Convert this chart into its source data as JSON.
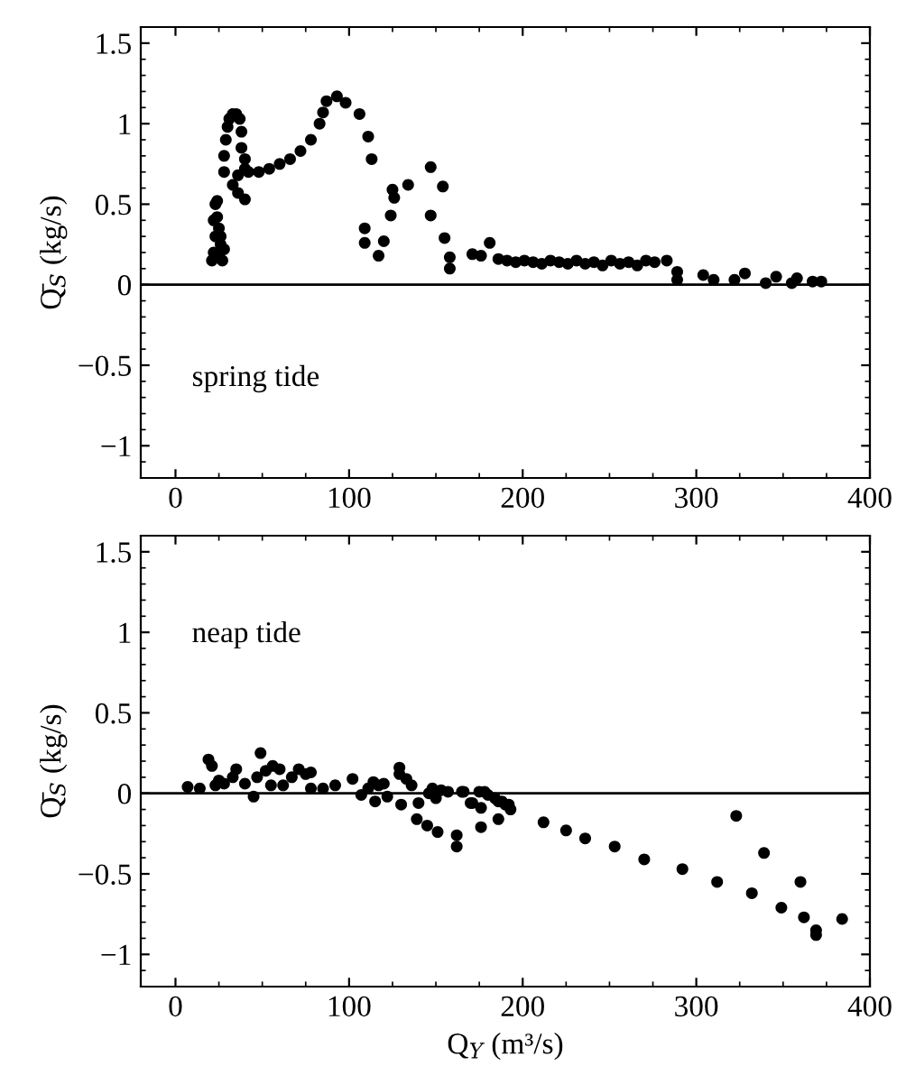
{
  "chart_data": [
    {
      "type": "scatter",
      "ylabel": "Q̄$_{S}$ (kg/s)",
      "annotations": [
        "spring tide"
      ],
      "xlim": [
        -20,
        400
      ],
      "xticks": [
        0,
        100,
        200,
        300,
        400
      ],
      "ylim": [
        -1.2,
        1.6
      ],
      "yticks": [
        -1,
        -0.5,
        0,
        0.5,
        1,
        1.5
      ],
      "ref_lines": [
        {
          "axis": "y",
          "value": 0,
          "color": "#000000"
        }
      ],
      "grid": false,
      "legend": false,
      "marker": "circle",
      "series": [
        {
          "color": "#000000",
          "x": [
            21,
            22,
            23,
            22,
            23,
            24,
            25,
            26,
            27,
            25,
            28,
            24,
            26,
            28,
            28,
            29,
            30,
            31,
            33,
            35,
            37,
            38,
            38,
            40,
            40,
            33,
            36,
            40,
            36,
            42,
            48,
            54,
            60,
            66,
            72,
            78,
            83,
            85,
            87,
            93,
            98,
            106,
            111,
            113,
            109,
            109,
            117,
            120,
            124,
            125,
            126,
            134,
            147,
            147,
            154,
            155,
            158,
            158,
            171,
            176,
            181,
            186,
            191,
            196,
            201,
            206,
            211,
            216,
            221,
            226,
            231,
            236,
            241,
            246,
            251,
            256,
            261,
            266,
            271,
            276,
            283,
            289,
            289,
            304,
            310,
            322,
            328,
            340,
            346,
            355,
            358,
            367,
            372
          ],
          "values": [
            0.15,
            0.2,
            0.3,
            0.4,
            0.5,
            0.52,
            0.35,
            0.25,
            0.15,
            0.18,
            0.22,
            0.42,
            0.3,
            0.7,
            0.8,
            0.9,
            0.98,
            1.03,
            1.06,
            1.06,
            1.03,
            0.95,
            0.85,
            0.78,
            0.72,
            0.62,
            0.57,
            0.53,
            0.68,
            0.7,
            0.7,
            0.72,
            0.75,
            0.78,
            0.83,
            0.9,
            1.0,
            1.07,
            1.14,
            1.17,
            1.13,
            1.06,
            0.92,
            0.78,
            0.35,
            0.26,
            0.18,
            0.27,
            0.43,
            0.59,
            0.54,
            0.62,
            0.73,
            0.43,
            0.61,
            0.29,
            0.17,
            0.1,
            0.19,
            0.18,
            0.26,
            0.16,
            0.15,
            0.14,
            0.15,
            0.14,
            0.13,
            0.15,
            0.14,
            0.13,
            0.15,
            0.13,
            0.14,
            0.12,
            0.15,
            0.13,
            0.14,
            0.12,
            0.15,
            0.14,
            0.15,
            0.08,
            0.03,
            0.06,
            0.03,
            0.03,
            0.07,
            0.01,
            0.05,
            0.01,
            0.04,
            0.02,
            0.02
          ]
        }
      ]
    },
    {
      "type": "scatter",
      "ylabel": "Q̄$_{S}$ (kg/s)",
      "xlabel": "Q$_{Y}$ (m³/s)",
      "annotations": [
        "neap tide"
      ],
      "xlim": [
        -20,
        400
      ],
      "xticks": [
        0,
        100,
        200,
        300,
        400
      ],
      "ylim": [
        -1.2,
        1.6
      ],
      "yticks": [
        -1,
        -0.5,
        0,
        0.5,
        1,
        1.5
      ],
      "ref_lines": [
        {
          "axis": "y",
          "value": 0,
          "color": "#000000"
        }
      ],
      "grid": false,
      "legend": false,
      "marker": "circle",
      "series": [
        {
          "color": "#000000",
          "x": [
            7,
            14,
            19,
            21,
            23,
            25,
            28,
            35,
            33,
            40,
            45,
            49,
            47,
            52,
            56,
            60,
            55,
            62,
            67,
            71,
            75,
            78,
            78,
            85,
            92,
            102,
            107,
            111,
            114,
            117,
            120,
            115,
            122,
            129,
            129,
            133,
            136,
            130,
            139,
            140,
            145,
            151,
            146,
            150,
            153,
            157,
            162,
            162,
            165,
            170,
            176,
            176,
            178,
            186,
            186,
            190,
            193,
            148,
            166,
            171,
            175,
            180,
            184,
            188,
            192,
            212,
            225,
            236,
            253,
            270,
            292,
            312,
            323,
            332,
            339,
            349,
            360,
            362,
            369,
            369,
            384
          ],
          "values": [
            0.04,
            0.03,
            0.21,
            0.17,
            0.05,
            0.08,
            0.06,
            0.15,
            0.1,
            0.06,
            -0.02,
            0.25,
            0.1,
            0.14,
            0.17,
            0.15,
            0.05,
            0.05,
            0.1,
            0.15,
            0.12,
            0.03,
            0.13,
            0.03,
            0.05,
            0.09,
            -0.01,
            0.03,
            0.07,
            0.05,
            0.06,
            -0.05,
            -0.02,
            0.16,
            0.12,
            0.09,
            0.05,
            -0.07,
            -0.16,
            -0.06,
            -0.2,
            -0.24,
            0.0,
            -0.03,
            0.02,
            0.01,
            -0.26,
            -0.33,
            0.01,
            -0.06,
            -0.21,
            -0.09,
            0.01,
            -0.16,
            -0.05,
            -0.07,
            -0.1,
            0.03,
            0.01,
            -0.06,
            0.01,
            -0.01,
            -0.03,
            -0.05,
            -0.07,
            -0.18,
            -0.23,
            -0.28,
            -0.33,
            -0.41,
            -0.47,
            -0.55,
            -0.14,
            -0.62,
            -0.37,
            -0.71,
            -0.55,
            -0.77,
            -0.85,
            -0.88,
            -0.78
          ]
        }
      ]
    }
  ]
}
